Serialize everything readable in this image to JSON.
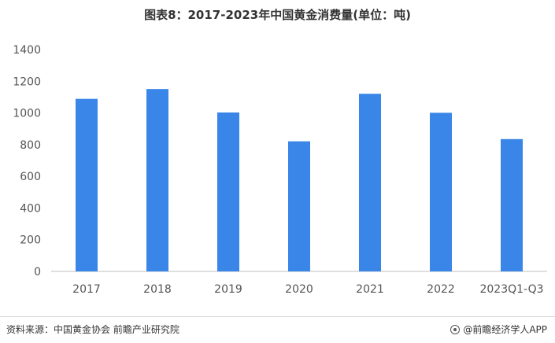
{
  "title": "图表8：2017-2023年中国黄金消费量(单位：吨)",
  "chart_data": {
    "type": "bar",
    "categories": [
      "2017",
      "2018",
      "2019",
      "2020",
      "2021",
      "2022",
      "2023Q1-Q3"
    ],
    "values": [
      1089,
      1151,
      1003,
      821,
      1121,
      1001,
      835
    ],
    "ylim": [
      0,
      1400
    ],
    "yticks": [
      0,
      200,
      400,
      600,
      800,
      1000,
      1200,
      1400
    ],
    "grid": false,
    "bar_color": "#3a86e8"
  },
  "footer": {
    "source": "资料来源：中国黄金协会 前瞻产业研究院",
    "brand": "@前瞻经济学人APP"
  }
}
